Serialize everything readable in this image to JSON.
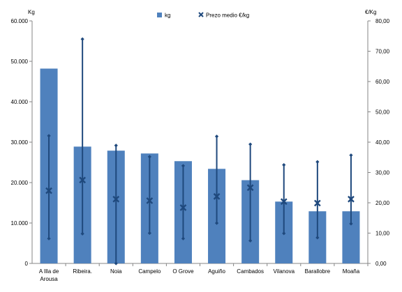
{
  "chart_data": {
    "type": "bar",
    "categories": [
      "A Illa de Arousa",
      "Ribeira.",
      "Noia",
      "Campelo",
      "O Grove",
      "Aguiño",
      "Cambados",
      "Vilanova",
      "Barallobre",
      "Moaña"
    ],
    "category_lines": [
      [
        "A Illa de",
        "Arousa"
      ],
      [
        "Ribeira."
      ],
      [
        "Noia"
      ],
      [
        "Campelo"
      ],
      [
        "O Grove"
      ],
      [
        "Aguiño"
      ],
      [
        "Cambados"
      ],
      [
        "Vilanova"
      ],
      [
        "Barallobre"
      ],
      [
        "Moaña"
      ]
    ],
    "series": [
      {
        "name": "kg",
        "axis": "left",
        "kind": "bar",
        "color": "#4f81bd",
        "values": [
          48200,
          28900,
          27900,
          27200,
          25300,
          23400,
          20600,
          15300,
          12900,
          12900
        ]
      },
      {
        "name": "Prezo medio €/kg",
        "axis": "right",
        "kind": "marker-range",
        "color": "#1f497d",
        "values": [
          24.0,
          27.5,
          21.2,
          20.7,
          18.4,
          22.1,
          25.0,
          20.4,
          19.9,
          21.2
        ],
        "max": [
          42.1,
          74.0,
          38.9,
          35.2,
          32.2,
          41.9,
          39.3,
          32.5,
          33.5,
          35.7
        ],
        "min": [
          8.2,
          9.8,
          0.0,
          10.0,
          8.2,
          13.3,
          7.5,
          9.9,
          8.5,
          13.1
        ]
      }
    ],
    "ylabel_left": "Kg",
    "ylabel_right": "€/Kg",
    "ylim_left": [
      0,
      60000
    ],
    "ylim_right": [
      0,
      80
    ],
    "yticks_left": [
      "0",
      "10.000",
      "20.000",
      "30.000",
      "40.000",
      "50.000",
      "60.000"
    ],
    "yticks_right": [
      "0,00",
      "10,00",
      "20,00",
      "30,00",
      "40,00",
      "50,00",
      "60,00",
      "70,00",
      "80,00"
    ],
    "legend_position": "top-center",
    "grid": false
  }
}
